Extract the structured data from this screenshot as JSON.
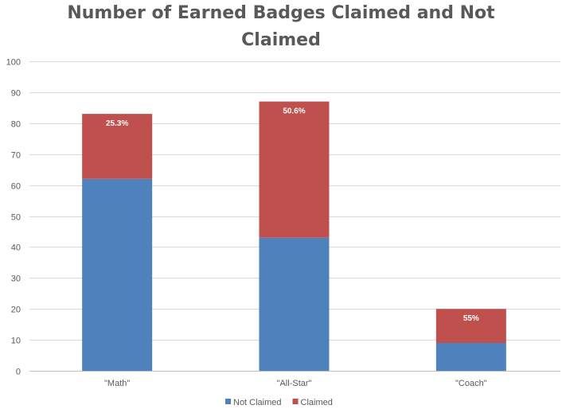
{
  "chart_data": {
    "type": "bar",
    "stacked": true,
    "title_lines": [
      "Number of Earned Badges Claimed and Not",
      "Claimed"
    ],
    "categories": [
      "\"Math\"",
      "\"All-Star\"",
      "\"Coach\""
    ],
    "series": [
      {
        "name": "Not Claimed",
        "values": [
          62,
          43,
          9
        ],
        "color": "#4f81bd"
      },
      {
        "name": "Claimed",
        "values": [
          21,
          44,
          11
        ],
        "color": "#c0504d"
      }
    ],
    "data_labels": [
      "25.3%",
      "50.6%",
      "55%"
    ],
    "ylim": [
      0,
      100
    ],
    "yticks": [
      0,
      10,
      20,
      30,
      40,
      50,
      60,
      70,
      80,
      90,
      100
    ],
    "grid": true,
    "legend_position": "bottom"
  }
}
